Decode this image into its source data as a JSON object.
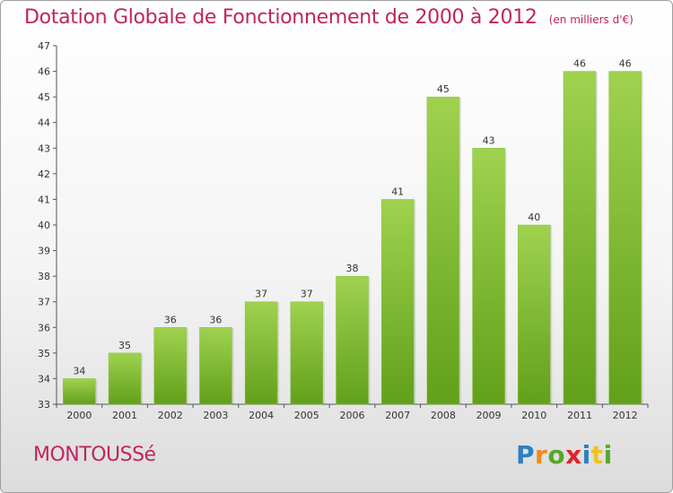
{
  "chart_data": {
    "type": "bar",
    "title": "Dotation Globale de Fonctionnement de 2000 à 2012",
    "unit": "(en milliers d'€)",
    "categories": [
      "2000",
      "2001",
      "2002",
      "2003",
      "2004",
      "2005",
      "2006",
      "2007",
      "2008",
      "2009",
      "2010",
      "2011",
      "2012"
    ],
    "values": [
      34,
      35,
      36,
      36,
      37,
      37,
      38,
      41,
      45,
      43,
      40,
      46,
      46
    ],
    "ylim": [
      33,
      47
    ],
    "yticks": [
      33,
      34,
      35,
      36,
      37,
      38,
      39,
      40,
      41,
      42,
      43,
      44,
      45,
      46,
      47
    ],
    "grid": false,
    "colors": {
      "bar_light": "#9fd24f",
      "bar_dark": "#62a01a",
      "title": "#c0245f",
      "axis": "#555555"
    }
  },
  "commune": "MONTOUSSé",
  "logo": {
    "text": "Proxiti",
    "letter_colors": [
      "#2f7fc1",
      "#f08a1c",
      "#57a829",
      "#e0252b",
      "#2f7fc1",
      "#f2c21b",
      "#57a829"
    ]
  }
}
